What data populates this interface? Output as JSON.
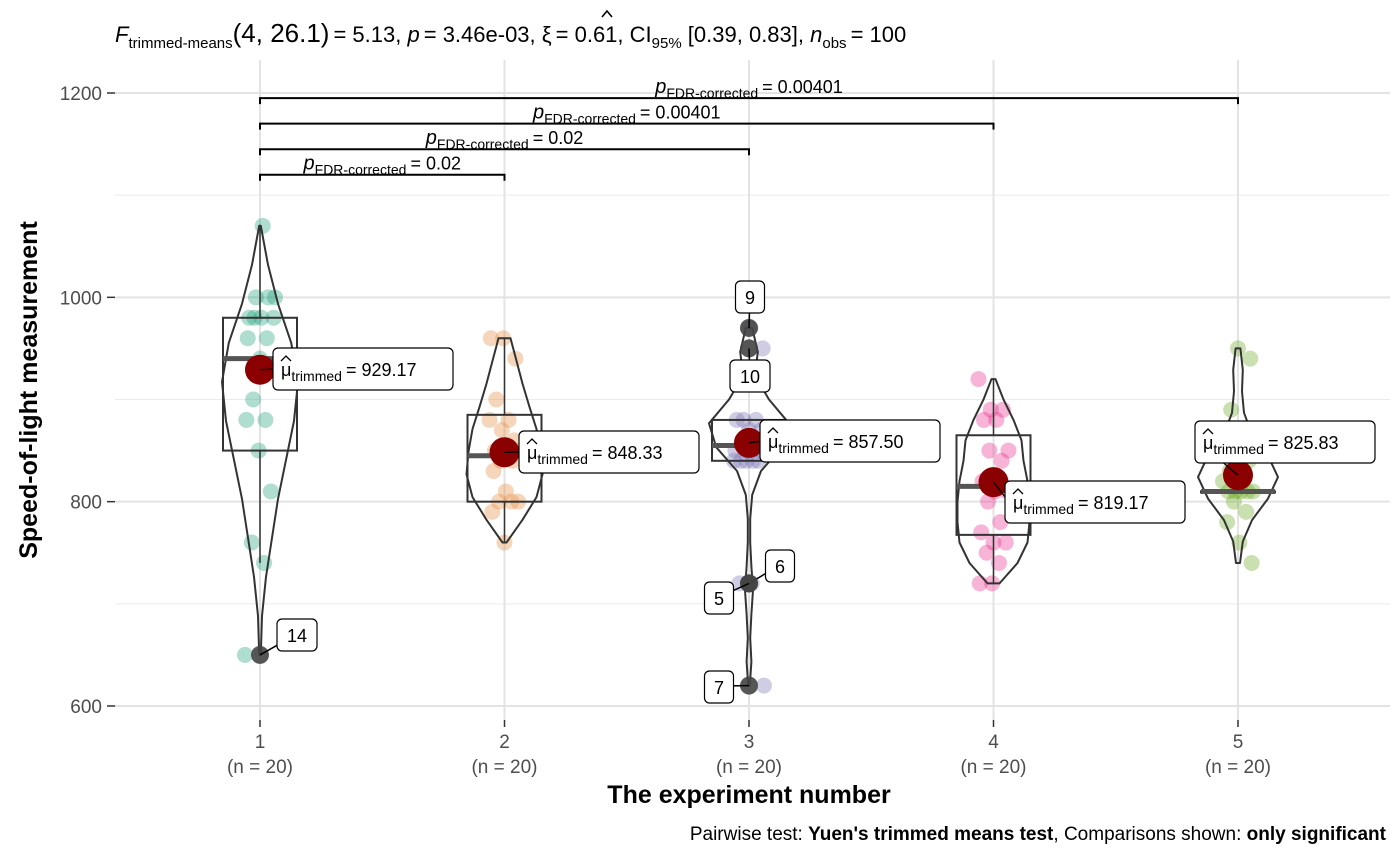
{
  "chart_data": {
    "type": "violin-box-scatter",
    "title": {
      "prefix": "F",
      "prefix_sub": "trimmed-means",
      "df": "(4, 26.1)",
      "stat": "= 5.13, ",
      "p_label": "p",
      "p_value": "= 3.46e-03, ",
      "effect": "= 0.61, CI",
      "ci_sub": "95%",
      "ci_value": " [0.39, 0.83], ",
      "n_label": "n",
      "n_sub": "obs",
      "n_value": "= 100"
    },
    "xlabel": "The experiment number",
    "ylabel": "Speed-of-light measurement",
    "caption": {
      "part1": "Pairwise test: ",
      "part2": "Yuen's trimmed means test",
      "part3": ", Comparisons shown: ",
      "part4": "only significant"
    },
    "ylim": [
      590,
      1215
    ],
    "yticks": [
      600,
      800,
      1000,
      1200
    ],
    "grid": true,
    "groups": [
      {
        "label": "1",
        "n_label": "(n = 20)",
        "color": "#1b9e77",
        "points": [
          650,
          740,
          760,
          810,
          850,
          880,
          880,
          900,
          930,
          940,
          960,
          960,
          980,
          980,
          980,
          980,
          1000,
          1000,
          1000,
          1070
        ],
        "box": {
          "q1": 850,
          "median": 940,
          "q3": 980,
          "wlo": 740,
          "whi": 1070
        },
        "violin": {
          "ymin": 650,
          "ymax": 1070,
          "widths": [
            0.02,
            0.05,
            0.15,
            0.3,
            0.45,
            0.65,
            0.85,
            0.95,
            0.78,
            0.45,
            0.2,
            0.02
          ]
        },
        "mean": 929.17,
        "mean_text": "= 929.17",
        "outliers": [
          {
            "y": 650,
            "label": "14"
          }
        ]
      },
      {
        "label": "2",
        "n_label": "(n = 20)",
        "color": "#e58a3c",
        "points": [
          760,
          790,
          800,
          800,
          800,
          810,
          830,
          840,
          840,
          850,
          850,
          850,
          860,
          870,
          880,
          880,
          900,
          940,
          960,
          960
        ],
        "box": {
          "q1": 800,
          "median": 845,
          "q3": 885,
          "wlo": 760,
          "whi": 960
        },
        "violin": {
          "ymin": 760,
          "ymax": 960,
          "widths": [
            0.05,
            0.45,
            0.8,
            0.95,
            0.9,
            0.8,
            0.62,
            0.45,
            0.3,
            0.15
          ]
        },
        "mean": 848.33,
        "mean_text": "= 848.33",
        "outliers": []
      },
      {
        "label": "3",
        "n_label": "(n = 20)",
        "color": "#7570b3",
        "points": [
          620,
          720,
          720,
          840,
          840,
          840,
          840,
          840,
          850,
          850,
          850,
          860,
          860,
          870,
          870,
          880,
          880,
          880,
          950,
          970
        ],
        "box": {
          "q1": 840,
          "median": 855,
          "q3": 880,
          "wlo": 840,
          "whi": 880
        },
        "violin": {
          "ymin": 620,
          "ymax": 970,
          "widths": [
            0.02,
            0.06,
            0.03,
            0.06,
            0.1,
            0.06,
            0.03,
            0.03,
            0.08,
            0.3,
            0.82,
            1.0,
            0.5,
            0.15,
            0.22,
            0.08
          ]
        },
        "mean": 857.5,
        "mean_text": "= 857.50",
        "outliers": [
          {
            "y": 970,
            "label": "9"
          },
          {
            "y": 950,
            "label": "10"
          },
          {
            "y": 720,
            "label": "6"
          },
          {
            "y": 720,
            "label": "5"
          },
          {
            "y": 620,
            "label": "7"
          }
        ]
      },
      {
        "label": "4",
        "n_label": "(n = 20)",
        "color": "#e7298a",
        "points": [
          720,
          720,
          740,
          750,
          760,
          760,
          770,
          780,
          800,
          810,
          810,
          820,
          840,
          850,
          850,
          880,
          880,
          890,
          890,
          920
        ],
        "box": {
          "q1": 767.5,
          "median": 815,
          "q3": 865,
          "wlo": 720,
          "whi": 920
        },
        "violin": {
          "ymin": 720,
          "ymax": 920,
          "widths": [
            0.15,
            0.6,
            0.85,
            0.9,
            0.9,
            0.85,
            0.75,
            0.7,
            0.5,
            0.25,
            0.05
          ]
        },
        "mean": 819.17,
        "mean_text": "= 819.17",
        "outliers": []
      },
      {
        "label": "5",
        "n_label": "(n = 20)",
        "color": "#66a61e",
        "points": [
          740,
          760,
          780,
          790,
          800,
          810,
          810,
          810,
          810,
          810,
          820,
          820,
          830,
          840,
          850,
          850,
          870,
          890,
          940,
          950
        ],
        "box": {
          "q1": 810,
          "median": 810,
          "q3": 810,
          "wlo": 810,
          "whi": 810
        },
        "violin": {
          "ymin": 740,
          "ymax": 950,
          "widths": [
            0.05,
            0.12,
            0.35,
            0.75,
            1.0,
            0.75,
            0.35,
            0.15,
            0.1,
            0.12,
            0.06
          ]
        },
        "mean": 825.83,
        "mean_text": "= 825.83",
        "outliers": []
      }
    ],
    "comparisons": [
      {
        "from": 1,
        "to": 2,
        "y": 1120,
        "label": "= 0.02"
      },
      {
        "from": 1,
        "to": 3,
        "y": 1145,
        "label": "= 0.02"
      },
      {
        "from": 1,
        "to": 4,
        "y": 1170,
        "label": "= 0.00401"
      },
      {
        "from": 1,
        "to": 5,
        "y": 1195,
        "label": "= 0.00401"
      }
    ],
    "comparison_p_label": "p",
    "comparison_p_sub": "FDR-corrected",
    "mean_label": "μ",
    "mean_label_sub": "trimmed",
    "mean_color": "#8b0000"
  }
}
